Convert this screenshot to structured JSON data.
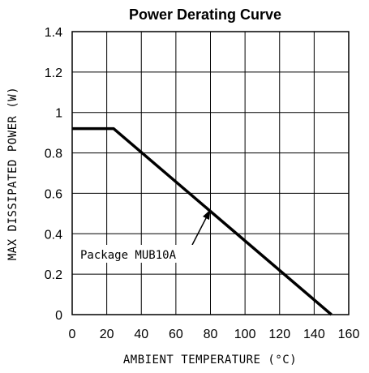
{
  "chart_data": {
    "type": "line",
    "title": "Power Derating Curve",
    "xlabel": "AMBIENT TEMPERATURE (°C)",
    "ylabel": "MAX DISSIPATED POWER (W)",
    "xlim": [
      0,
      160
    ],
    "ylim": [
      0,
      1.4
    ],
    "xticks": [
      0,
      20,
      40,
      60,
      80,
      100,
      120,
      140,
      160
    ],
    "yticks": [
      0,
      0.2,
      0.4,
      0.6,
      0.8,
      1.0,
      1.2,
      1.4
    ],
    "xtick_labels": [
      "0",
      "20",
      "40",
      "60",
      "80",
      "100",
      "120",
      "140",
      "160"
    ],
    "ytick_labels": [
      "0",
      "0.2",
      "0.4",
      "0.6",
      "0.8",
      "1",
      "1.2",
      "1.4"
    ],
    "grid": true,
    "series": [
      {
        "name": "Package MUB10A",
        "x": [
          0,
          24,
          150
        ],
        "y": [
          0.92,
          0.92,
          0.0
        ]
      }
    ],
    "annotations": [
      {
        "text": "Package MUB10A",
        "x": 80,
        "y": 0.52
      }
    ],
    "colors": {
      "line": "#000000",
      "grid": "#000000",
      "background": "#ffffff"
    }
  }
}
